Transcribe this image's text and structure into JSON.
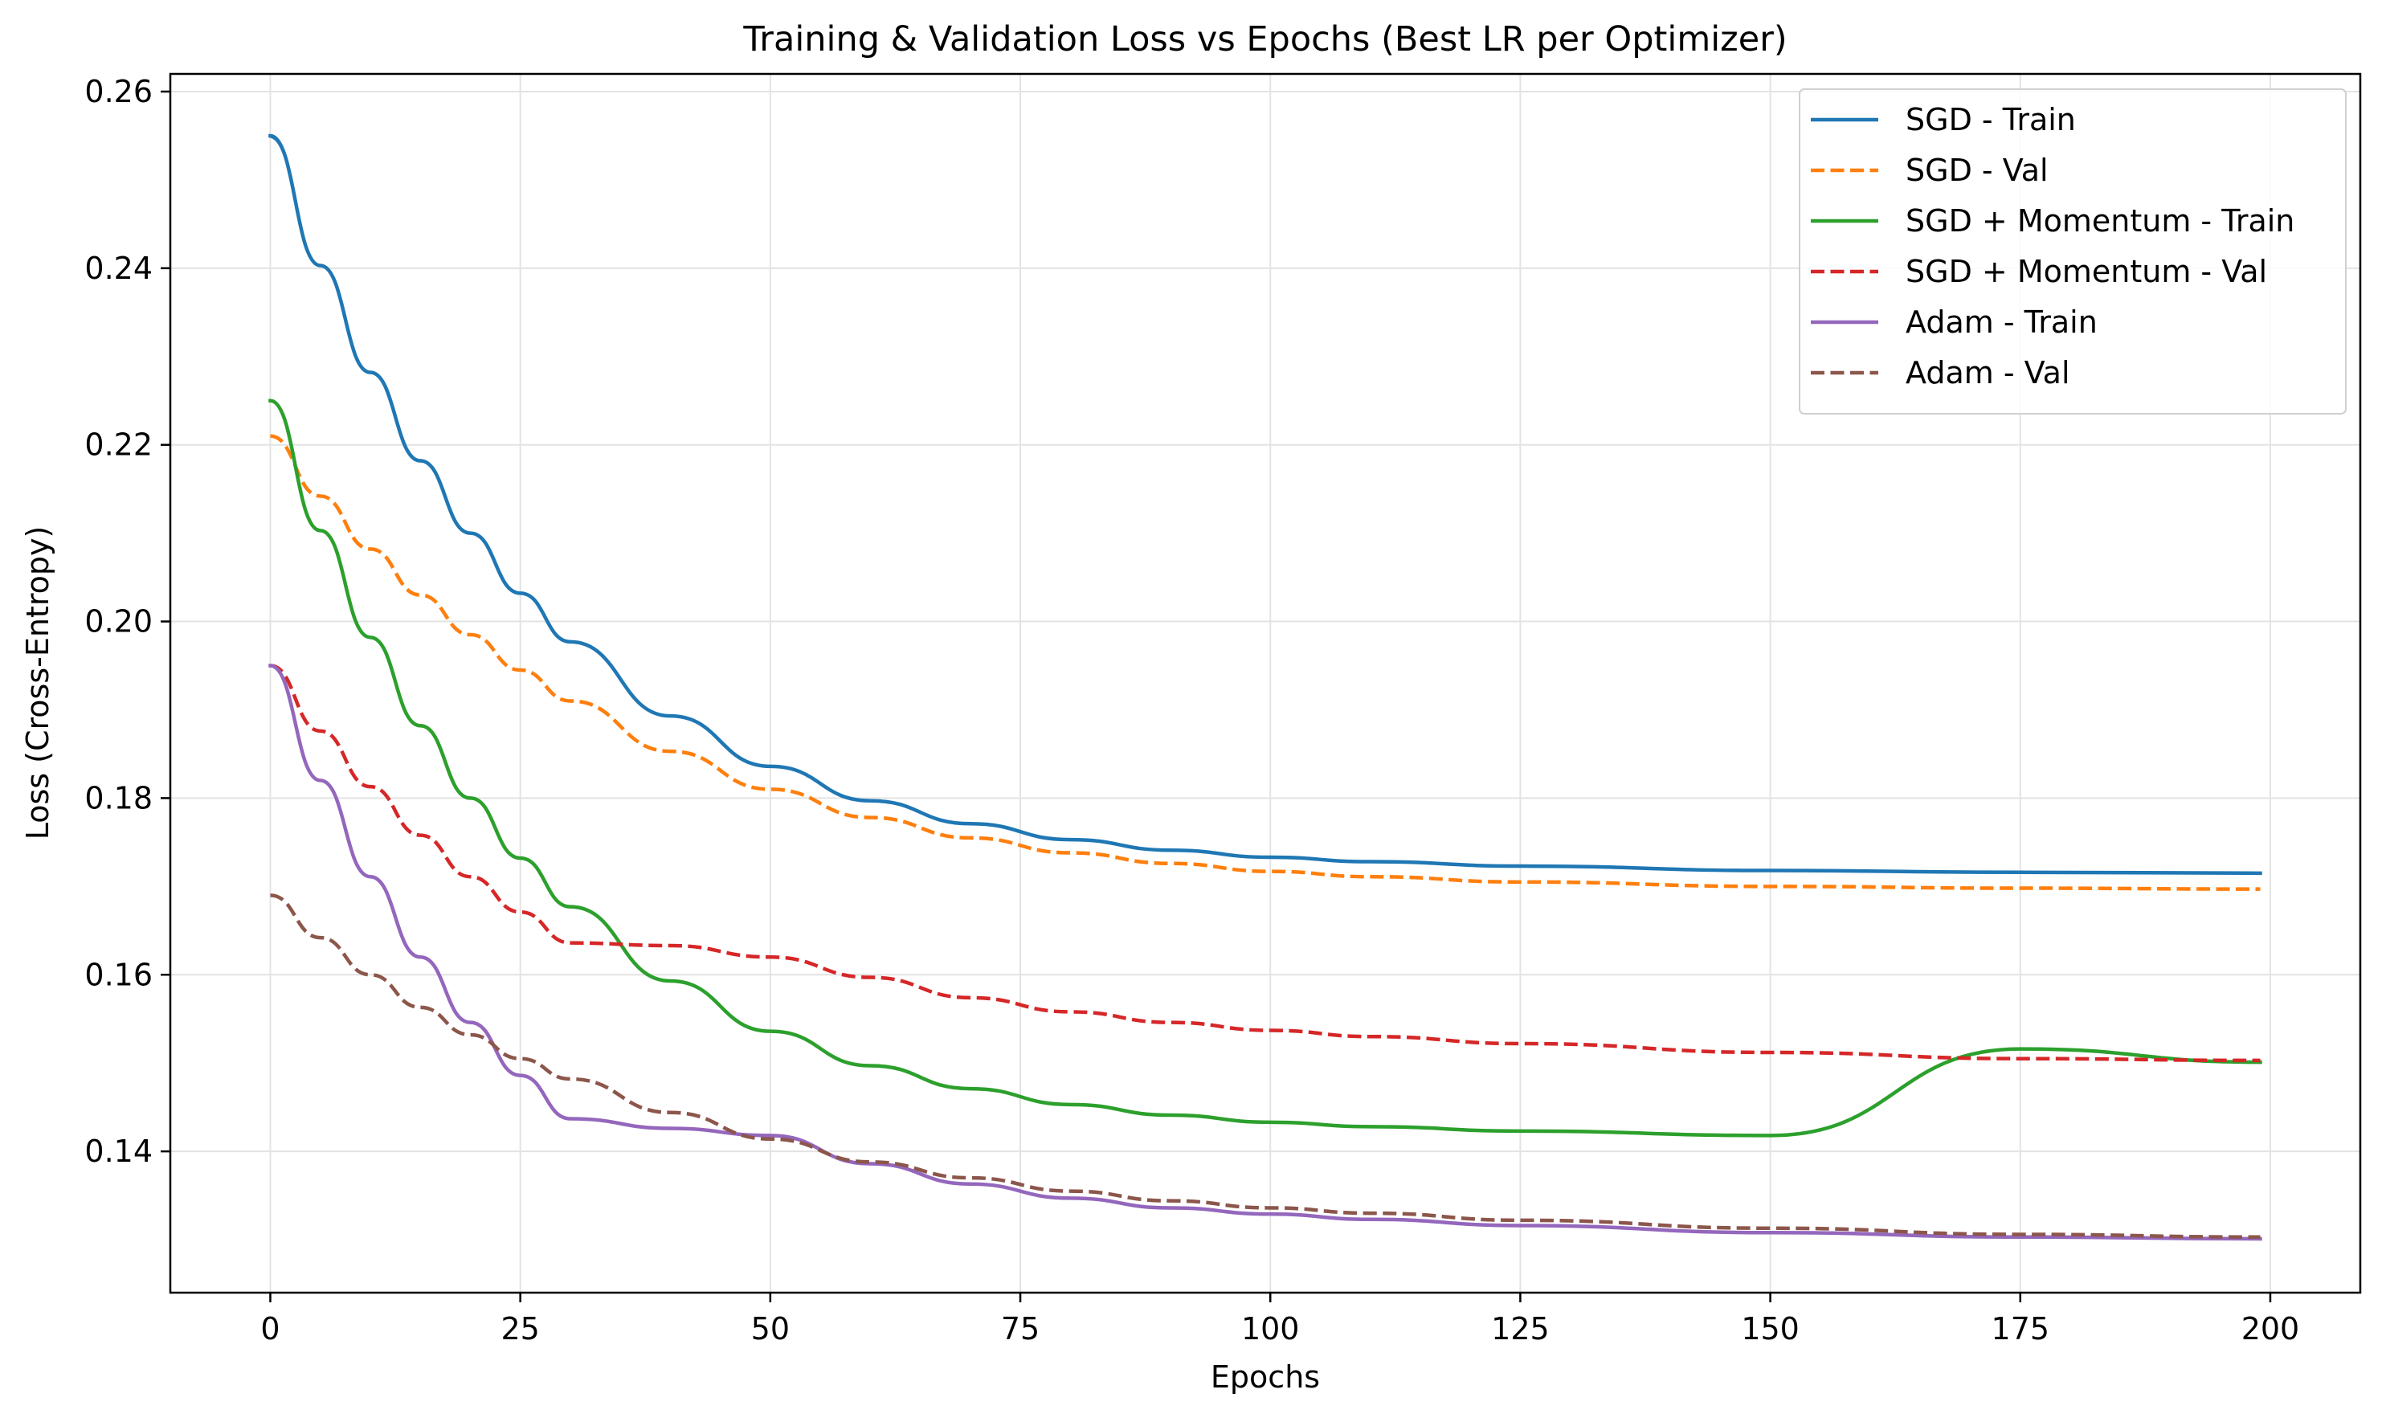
{
  "chart_data": {
    "type": "line",
    "title": "Training & Validation Loss vs Epochs (Best LR per Optimizer)",
    "xlabel": "Epochs",
    "ylabel": "Loss (Cross-Entropy)",
    "xlim": [
      -10,
      209
    ],
    "ylim": [
      0.124,
      0.262
    ],
    "xticks": [
      0,
      25,
      50,
      75,
      100,
      125,
      150,
      175,
      200
    ],
    "yticks": [
      0.14,
      0.16,
      0.18,
      0.2,
      0.22,
      0.24,
      0.26
    ],
    "ytick_labels": [
      "0.14",
      "0.16",
      "0.18",
      "0.20",
      "0.22",
      "0.24",
      "0.26"
    ],
    "grid": true,
    "legend_position": "top-right",
    "x": [
      0,
      5,
      10,
      15,
      20,
      25,
      30,
      40,
      50,
      60,
      70,
      80,
      90,
      100,
      110,
      125,
      150,
      175,
      199
    ],
    "series": [
      {
        "name": "SGD - Train",
        "color": "#1f77b4",
        "style": "solid",
        "values": [
          0.255,
          0.2403,
          0.2282,
          0.2182,
          0.21,
          0.2032,
          0.1977,
          0.1893,
          0.1836,
          0.1797,
          0.1771,
          0.1753,
          0.1741,
          0.1733,
          0.1728,
          0.1723,
          0.1718,
          0.1716,
          0.1715
        ]
      },
      {
        "name": "SGD - Val",
        "color": "#ff7f0e",
        "style": "dashed",
        "values": [
          0.221,
          0.2142,
          0.2082,
          0.203,
          0.1985,
          0.1945,
          0.191,
          0.1853,
          0.181,
          0.1778,
          0.1755,
          0.1738,
          0.1726,
          0.1717,
          0.1711,
          0.1705,
          0.17,
          0.1698,
          0.1697
        ]
      },
      {
        "name": "SGD + Momentum - Train",
        "color": "#2ca02c",
        "style": "solid",
        "values": [
          0.225,
          0.2103,
          0.1982,
          0.1882,
          0.18,
          0.1732,
          0.1677,
          0.1593,
          0.1536,
          0.1497,
          0.1471,
          0.1453,
          0.1441,
          0.1433,
          0.1428,
          0.1423,
          0.1418,
          0.1516,
          0.1501
        ]
      },
      {
        "name": "SGD + Momentum - Val",
        "color": "#d62728",
        "style": "dashed",
        "values": [
          0.195,
          0.1876,
          0.1813,
          0.1758,
          0.1711,
          0.1671,
          0.1636,
          0.1633,
          0.162,
          0.1597,
          0.1574,
          0.1558,
          0.1546,
          0.1537,
          0.153,
          0.1522,
          0.1512,
          0.1505,
          0.1503
        ]
      },
      {
        "name": "Adam - Train",
        "color": "#9467bd",
        "style": "solid",
        "values": [
          0.195,
          0.182,
          0.1711,
          0.162,
          0.1546,
          0.1486,
          0.1437,
          0.1426,
          0.1418,
          0.1386,
          0.1363,
          0.1347,
          0.1336,
          0.1329,
          0.1323,
          0.1316,
          0.1308,
          0.1303,
          0.1301
        ]
      },
      {
        "name": "Adam - Val",
        "color": "#8c564b",
        "style": "dashed",
        "values": [
          0.169,
          0.1642,
          0.16,
          0.1563,
          0.1532,
          0.1505,
          0.1482,
          0.1444,
          0.1414,
          0.1388,
          0.137,
          0.1355,
          0.1344,
          0.1336,
          0.133,
          0.1322,
          0.1313,
          0.1306,
          0.1303
        ]
      }
    ]
  }
}
